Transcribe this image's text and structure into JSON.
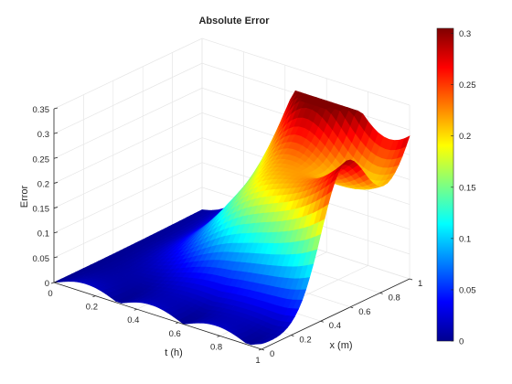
{
  "chart_data": {
    "type": "surface",
    "title": "Absolute Error",
    "xlabel": "t (h)",
    "ylabel": "x (m)",
    "zlabel": "Error",
    "xlim": [
      0,
      1
    ],
    "ylim": [
      0,
      1
    ],
    "zlim": [
      0,
      0.35
    ],
    "x_ticks": [
      "0",
      "0.2",
      "0.4",
      "0.6",
      "0.8",
      "1"
    ],
    "y_ticks": [
      "0",
      "0.2",
      "0.4",
      "0.6",
      "0.8",
      "1"
    ],
    "z_ticks": [
      "0",
      "0.05",
      "0.1",
      "0.15",
      "0.2",
      "0.25",
      "0.3",
      "0.35"
    ],
    "grid": true,
    "colormap": "jet",
    "colorbar": {
      "placement": "right",
      "range": [
        0,
        0.305
      ],
      "ticks": [
        "0",
        "0.05",
        "0.1",
        "0.15",
        "0.2",
        "0.25",
        "0.3"
      ]
    },
    "max_error": 0.305,
    "peaks": [
      {
        "t": 0.55,
        "x": 1.0,
        "error": 0.305
      },
      {
        "t": 1.0,
        "x": 0.55,
        "error": 0.245
      },
      {
        "t": 1.0,
        "x": 1.0,
        "error": 0.265
      }
    ],
    "edge_profile_x0": {
      "t": [
        0,
        0.1,
        0.2,
        0.3,
        0.4,
        0.5,
        0.6,
        0.7,
        0.8,
        0.9,
        1.0
      ],
      "error": [
        0.008,
        0.03,
        0.005,
        0.02,
        0.005,
        0.02,
        0.004,
        0.012,
        0.02,
        0.01,
        0.005
      ]
    }
  }
}
